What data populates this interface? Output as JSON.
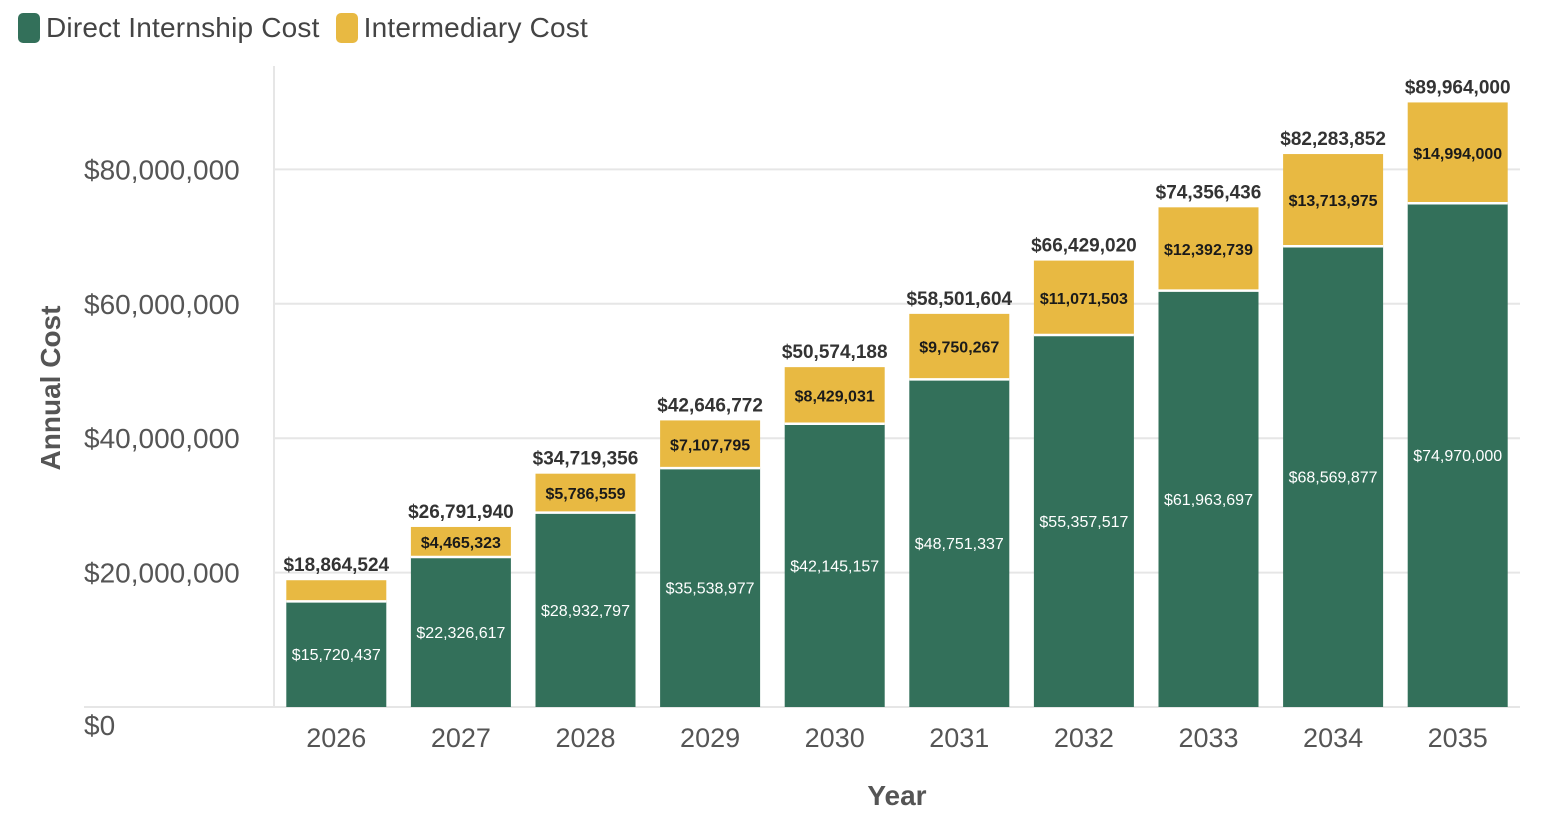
{
  "legend": {
    "items": [
      {
        "label": "Direct Internship Cost",
        "color": "#33705a"
      },
      {
        "label": "Intermediary Cost",
        "color": "#e8b942"
      }
    ]
  },
  "chart_data": {
    "type": "bar",
    "stacked": true,
    "xlabel": "Year",
    "ylabel": "Annual Cost",
    "ylim": [
      0,
      95000000
    ],
    "yticks": [
      0,
      20000000,
      40000000,
      60000000,
      80000000
    ],
    "ytick_labels": [
      "$0",
      "$20,000,000",
      "$40,000,000",
      "$60,000,000",
      "$80,000,000"
    ],
    "categories": [
      "2026",
      "2027",
      "2028",
      "2029",
      "2030",
      "2031",
      "2032",
      "2033",
      "2034",
      "2035"
    ],
    "series": [
      {
        "name": "Direct Internship Cost",
        "color": "#33705a",
        "values": [
          15720437,
          22326617,
          28932797,
          35538977,
          42145157,
          48751337,
          55357517,
          61963697,
          68569877,
          74970000
        ],
        "labels": [
          "$15,720,437",
          "$22,326,617",
          "$28,932,797",
          "$35,538,977",
          "$42,145,157",
          "$48,751,337",
          "$55,357,517",
          "$61,963,697",
          "$68,569,877",
          "$74,970,000"
        ]
      },
      {
        "name": "Intermediary Cost",
        "color": "#e8b942",
        "values": [
          3144087,
          4465323,
          5786559,
          7107795,
          8429031,
          9750267,
          11071503,
          12392739,
          13713975,
          14994000
        ],
        "labels": [
          "",
          "$4,465,323",
          "$5,786,559",
          "$7,107,795",
          "$8,429,031",
          "$9,750,267",
          "$11,071,503",
          "$12,392,739",
          "$13,713,975",
          "$14,994,000"
        ]
      }
    ],
    "totals": [
      18864524,
      26791940,
      34719356,
      42646772,
      50574188,
      58501604,
      66429020,
      74356436,
      82283852,
      89964000
    ],
    "total_labels": [
      "$18,864,524",
      "$26,791,940",
      "$34,719,356",
      "$42,646,772",
      "$50,574,188",
      "$58,501,604",
      "$66,429,020",
      "$74,356,436",
      "$82,283,852",
      "$89,964,000"
    ],
    "grid": true,
    "legend_position": "top-left"
  }
}
